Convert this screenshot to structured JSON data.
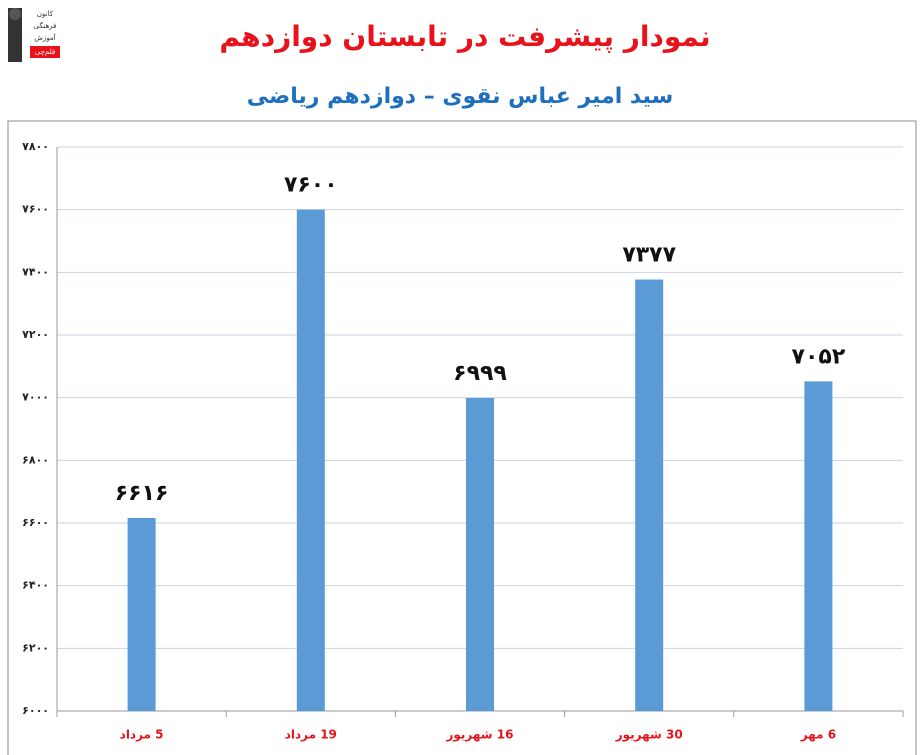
{
  "chart_data": {
    "type": "bar",
    "title": "نمودار پیشرفت در تابستان دوازدهم",
    "subtitle": "سید امیر عباس نقوی – دوازدهم ریاضی",
    "logo": {
      "lines": [
        "کانون",
        "فرهنگی",
        "آموزش"
      ],
      "badge": "قلم‌چی"
    },
    "categories": [
      "5 مرداد",
      "19 مرداد",
      "16 شهریور",
      "30 شهریور",
      "6 مهر"
    ],
    "values": [
      6616,
      7600,
      6999,
      7377,
      7052
    ],
    "value_labels": [
      "۶۶۱۶",
      "۷۶۰۰",
      "۶۹۹۹",
      "۷۳۷۷",
      "۷۰۵۲"
    ],
    "color": "#5b9bd5",
    "ylim": [
      6000,
      7800
    ],
    "yticks": [
      {
        "value": 6000,
        "label": "۶۰۰۰"
      },
      {
        "value": 6200,
        "label": "۶۲۰۰"
      },
      {
        "value": 6400,
        "label": "۶۴۰۰"
      },
      {
        "value": 6600,
        "label": "۶۶۰۰"
      },
      {
        "value": 6800,
        "label": "۶۸۰۰"
      },
      {
        "value": 7000,
        "label": "۷۰۰۰"
      },
      {
        "value": 7200,
        "label": "۷۲۰۰"
      },
      {
        "value": 7400,
        "label": "۷۴۰۰"
      },
      {
        "value": 7600,
        "label": "۷۶۰۰"
      },
      {
        "value": 7800,
        "label": "۷۸۰۰"
      }
    ],
    "grid": true
  }
}
